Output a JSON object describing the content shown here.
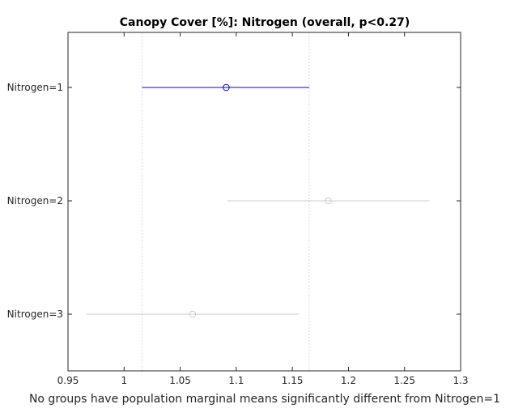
{
  "chart_data": {
    "type": "scatter",
    "title": "Canopy Cover [%]: Nitrogen (overall, p<0.27)",
    "xlabel": "No groups have population marginal means significantly different from Nitrogen=1",
    "ylabel": "",
    "xlim": [
      0.95,
      1.3
    ],
    "x_ticks": [
      "0.95",
      "1",
      "1.05",
      "1.1",
      "1.15",
      "1.2",
      "1.25",
      "1.3"
    ],
    "grid": false,
    "comparison_interval_lines": [
      1.016,
      1.165
    ],
    "groups": [
      {
        "label": "Nitrogen=1",
        "mean": 1.091,
        "lower": 1.016,
        "upper": 1.165,
        "color": "#0000ff",
        "selected": true
      },
      {
        "label": "Nitrogen=2",
        "mean": 1.182,
        "lower": 1.092,
        "upper": 1.272,
        "color": "#cccccc",
        "selected": false
      },
      {
        "label": "Nitrogen=3",
        "mean": 1.061,
        "lower": 0.966,
        "upper": 1.156,
        "color": "#cccccc",
        "selected": false
      }
    ]
  }
}
